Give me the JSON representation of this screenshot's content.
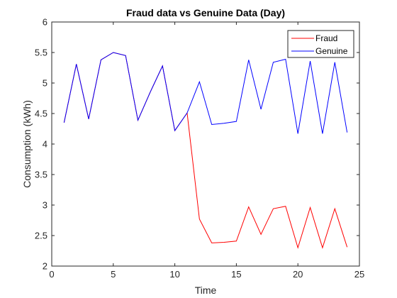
{
  "chart_data": {
    "type": "line",
    "title": "Fraud data vs Genuine Data (Day)",
    "xlabel": "Time",
    "ylabel": "Consumption (kWh)",
    "xlim": [
      0,
      25
    ],
    "ylim": [
      2,
      6
    ],
    "xticks": [
      "0",
      "5",
      "10",
      "15",
      "20",
      "25"
    ],
    "yticks": [
      "2",
      "2.5",
      "3",
      "3.5",
      "4",
      "4.5",
      "5",
      "5.5",
      "6"
    ],
    "grid": false,
    "legend_position": "top-right",
    "x": [
      1,
      2,
      3,
      4,
      5,
      6,
      7,
      8,
      9,
      10,
      11,
      12,
      13,
      14,
      15,
      16,
      17,
      18,
      19,
      20,
      21,
      22,
      23,
      24
    ],
    "series": [
      {
        "name": "Fraud",
        "color": "#ff0000",
        "values": [
          4.35,
          5.31,
          4.41,
          5.38,
          5.5,
          5.45,
          4.39,
          4.85,
          5.28,
          4.22,
          4.51,
          2.77,
          2.38,
          2.39,
          2.41,
          2.97,
          2.52,
          2.94,
          2.98,
          2.3,
          2.96,
          2.3,
          2.94,
          2.31
        ]
      },
      {
        "name": "Genuine",
        "color": "#0000ff",
        "values": [
          4.35,
          5.31,
          4.41,
          5.38,
          5.5,
          5.45,
          4.39,
          4.85,
          5.28,
          4.22,
          4.51,
          5.02,
          4.32,
          4.34,
          4.37,
          5.38,
          4.57,
          5.34,
          5.39,
          4.17,
          5.36,
          4.17,
          5.34,
          4.19
        ]
      }
    ]
  }
}
